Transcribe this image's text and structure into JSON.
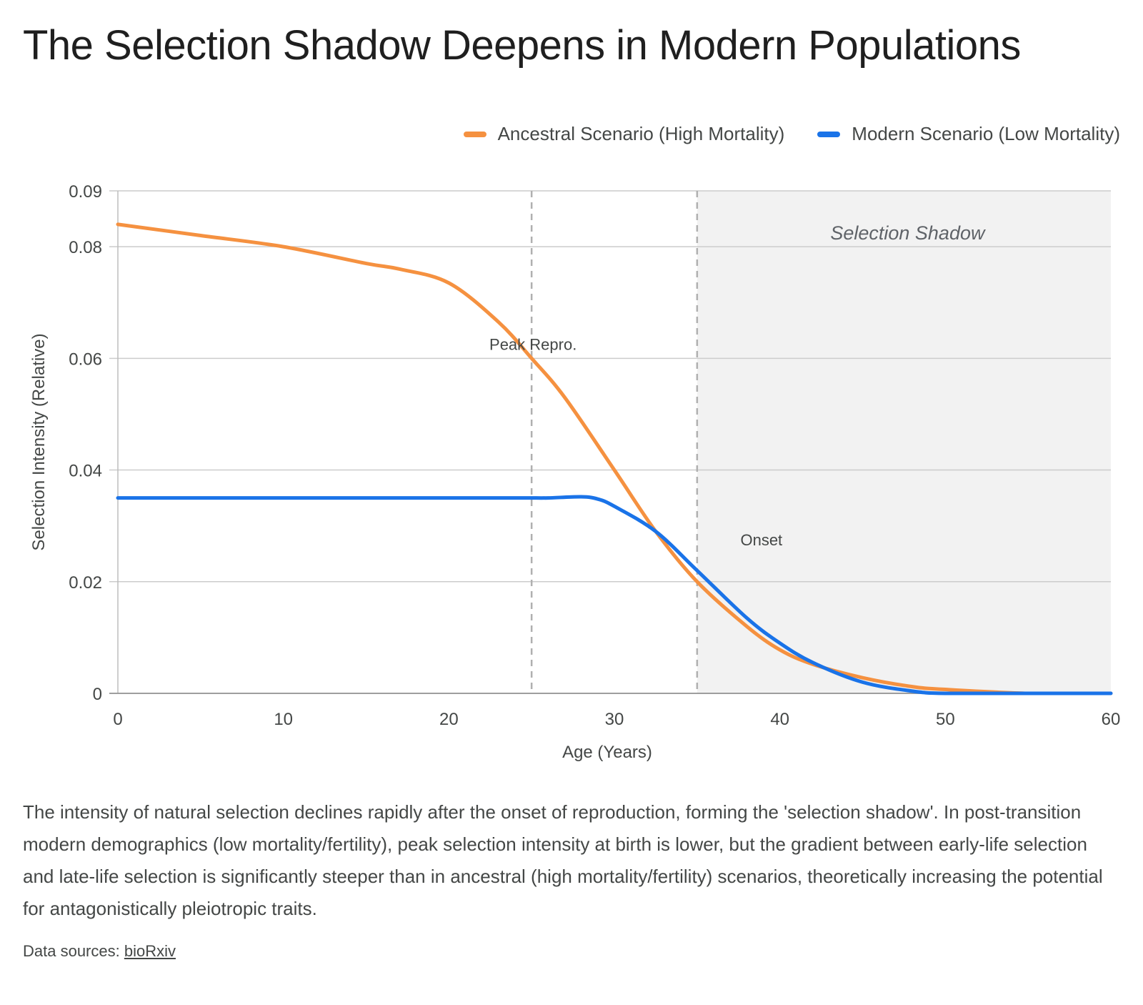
{
  "title": "The Selection Shadow Deepens in Modern Populations",
  "caption": "The intensity of natural selection declines rapidly after the onset of reproduction, forming the 'selection shadow'. In post-transition modern demographics (low mortality/fertility), peak selection intensity at birth is lower, but the gradient between early-life selection and late-life selection is significantly steeper than in ancestral (high mortality/fertility) scenarios, theoretically increasing the potential for antagonistically pleiotropic traits.",
  "sources": {
    "label": "Data sources:",
    "link_text": "bioRxiv"
  },
  "colors": {
    "ancestral": "#f59140",
    "modern": "#1a73e8",
    "shadow": "#f2f2f2",
    "grid": "#cccccc"
  },
  "chart_data": {
    "type": "line",
    "xlabel": "Age (Years)",
    "ylabel": "Selection Intensity (Relative)",
    "xlim": [
      0,
      60
    ],
    "ylim": [
      0,
      0.09
    ],
    "xticks": [
      0,
      10,
      20,
      30,
      40,
      50,
      60
    ],
    "yticks": [
      0,
      0.02,
      0.04,
      0.06,
      0.08,
      0.09
    ],
    "ytick_labels": [
      "0",
      "0.02",
      "0.04",
      "0.06",
      "0.08",
      "0.09"
    ],
    "legend_position": "top-right",
    "series": [
      {
        "name": "Ancestral Scenario (High Mortality)",
        "color": "#f59140",
        "x": [
          0,
          5,
          10,
          15,
          17,
          20,
          23,
          25,
          27,
          30,
          32.5,
          35,
          38,
          40,
          42,
          45,
          48,
          50,
          55,
          60
        ],
        "y": [
          0.084,
          0.082,
          0.08,
          0.077,
          0.076,
          0.0735,
          0.0665,
          0.06,
          0.053,
          0.04,
          0.029,
          0.02,
          0.012,
          0.0078,
          0.0052,
          0.0028,
          0.0012,
          0.0007,
          0.0,
          0.0
        ]
      },
      {
        "name": "Modern Scenario (Low Mortality)",
        "color": "#1a73e8",
        "x": [
          0,
          5,
          10,
          15,
          20,
          22,
          24,
          25,
          26,
          28,
          29,
          30,
          32.5,
          35,
          38,
          40,
          42,
          45,
          48,
          50,
          55,
          60
        ],
        "y": [
          0.035,
          0.035,
          0.035,
          0.035,
          0.035,
          0.035,
          0.035,
          0.035,
          0.035,
          0.0352,
          0.0348,
          0.0335,
          0.029,
          0.022,
          0.0135,
          0.009,
          0.0055,
          0.002,
          0.0004,
          0.0,
          0.0,
          0.0
        ]
      }
    ],
    "annotations": [
      {
        "type": "vline",
        "x": 25,
        "label": "Peak Repro."
      },
      {
        "type": "vline",
        "x": 35,
        "label": "Onset"
      },
      {
        "type": "shaded_region",
        "x_start": 35,
        "x_end": 60,
        "label": "Selection Shadow"
      }
    ]
  }
}
